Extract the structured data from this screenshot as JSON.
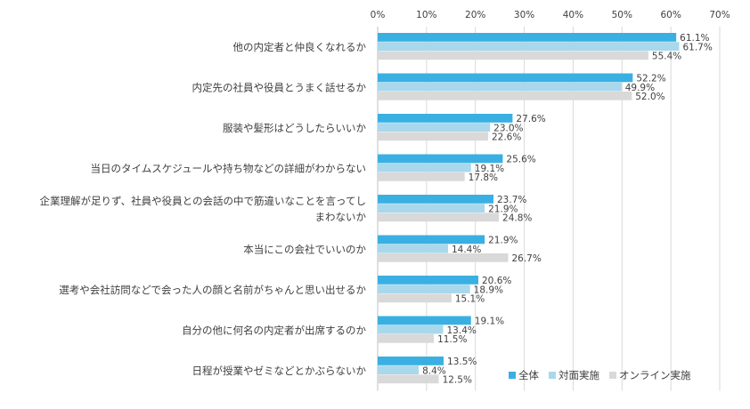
{
  "chart_data": {
    "type": "bar",
    "orientation": "horizontal",
    "categories": [
      "他の内定者と仲良くなれるか",
      "内定先の社員や役員とうまく話せるか",
      "服装や髪形はどうしたらいいか",
      "当日のタイムスケジュールや持ち物などの詳細がわからない",
      "企業理解が足りず、社員や役員との会話の中で筋違いなことを言ってしまわないか",
      "本当にこの会社でいいのか",
      "選考や会社訪問などで会った人の顔と名前がちゃんと思い出せるか",
      "自分の他に何名の内定者が出席するのか",
      "日程が授業やゼミなどとかぶらないか"
    ],
    "category_lines": [
      [
        "他の内定者と仲良くなれるか"
      ],
      [
        "内定先の社員や役員とうまく話せるか"
      ],
      [
        "服装や髪形はどうしたらいいか"
      ],
      [
        "当日のタイムスケジュールや持ち物などの詳細がわからない"
      ],
      [
        "企業理解が足りず、社員や役員との会話の中で筋違いなことを言ってし",
        "まわないか"
      ],
      [
        "本当にこの会社でいいのか"
      ],
      [
        "選考や会社訪問などで会った人の顔と名前がちゃんと思い出せるか"
      ],
      [
        "自分の他に何名の内定者が出席するのか"
      ],
      [
        "日程が授業やゼミなどとかぶらないか"
      ]
    ],
    "series": [
      {
        "name": "全体",
        "color": "#3ab0e2",
        "values": [
          61.1,
          52.2,
          27.6,
          25.6,
          23.7,
          21.9,
          20.6,
          19.1,
          13.5
        ]
      },
      {
        "name": "対面実施",
        "color": "#a9d8ec",
        "values": [
          61.7,
          49.9,
          23.0,
          19.1,
          21.9,
          14.4,
          18.9,
          13.4,
          8.4
        ]
      },
      {
        "name": "オンライン実施",
        "color": "#d9d9d9",
        "values": [
          55.4,
          52.0,
          22.6,
          17.8,
          24.8,
          26.7,
          15.1,
          11.5,
          12.5
        ]
      }
    ],
    "xlim": [
      0,
      70
    ],
    "xticks": [
      0,
      10,
      20,
      30,
      40,
      50,
      60,
      70
    ],
    "tick_suffix": "%",
    "value_suffix": "%",
    "grid": true,
    "legend_position": "bottom-right"
  }
}
